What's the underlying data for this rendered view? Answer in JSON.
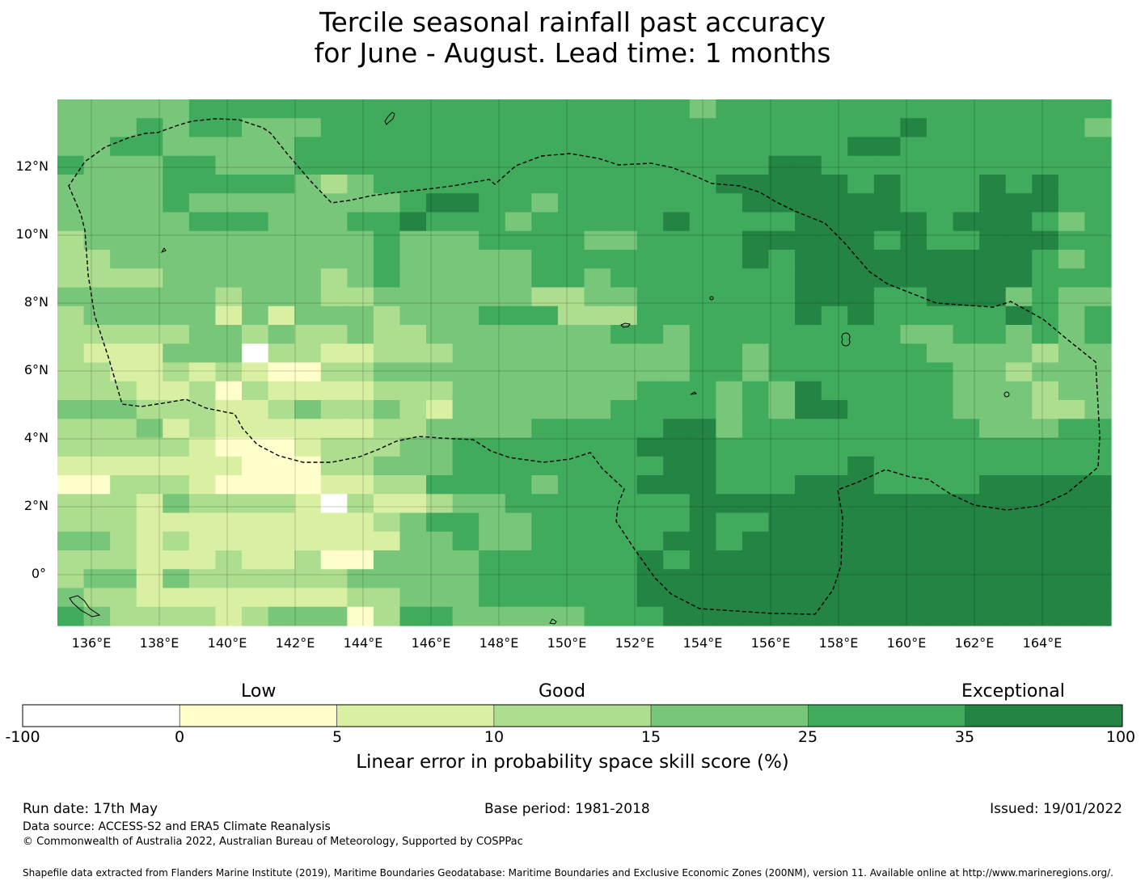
{
  "title": {
    "line1": "Tercile seasonal rainfall past accuracy",
    "line2": "for June - August. Lead time: 1 months"
  },
  "colors": {
    "c0": "#ffffff",
    "c1": "#ffffcc",
    "c2": "#d9f0a3",
    "c3": "#addd8e",
    "c4": "#78c679",
    "c5": "#41ab5d",
    "c6": "#238443",
    "boundary": "#000000"
  },
  "map": {
    "lat_ticks": [
      "12°N",
      "10°N",
      "8°N",
      "6°N",
      "4°N",
      "2°N",
      "0°"
    ],
    "lon_ticks": [
      "136°E",
      "138°E",
      "140°E",
      "142°E",
      "144°E",
      "146°E",
      "148°E",
      "150°E",
      "152°E",
      "154°E",
      "156°E",
      "158°E",
      "160°E",
      "162°E",
      "164°E"
    ],
    "grid_legend": "cell digits are colour-class indices 0..6 into the colorbar",
    "grid": [
      "4444455555555555555555554555555555555555",
      "4445455444555555555555555555555565555554",
      "4455444445555555555555555555556655555555",
      "5455554445555555555555555556655555555555",
      "4444555554345555555555555666665655565655",
      "4444544444444566554555555566666655566655",
      "4444455544455655545555565555666665666545",
      "3444444444445444555544555566666565566655",
      "3344444444445444445555555565666666666545",
      "3333444444345444445545555555666666666555",
      "4444443444334444443344555555666556664544",
      "3444442424443444555333555555656555556545",
      "3333344343343344444445545555555544554545",
      "3222444333223334444444445545555554444344",
      "3322323233334444444444445545555555443444",
      "3332231332223334444444555454655555444344",
      "4443332234334324444445555454665555444334",
      "3334232222223344445555566455555555544455",
      "3333321112333445555555666555555555555555",
      "2222222111334445555555566555556555555555",
      "1133321111223355554555666555666555566666",
      "3332433332232234455555556666666666666666",
      "3332222222223455445555556556666666666666",
      "4432322222224445445555566566666666666666",
      "3332223223334444555555656666666666666666",
      "3442433333344444555555666666666666666666",
      "4332222222233444555555666666666666666666",
      "5433332344443554444455566666666666666666"
    ],
    "patches": [
      {
        "r": 3,
        "c": 2,
        "v": 4
      },
      {
        "r": 3,
        "c": 3,
        "v": 4
      },
      {
        "r": 13,
        "c": 7,
        "v": 0
      },
      {
        "r": 14,
        "c": 8,
        "v": 1
      },
      {
        "r": 14,
        "c": 9,
        "v": 1
      },
      {
        "r": 15,
        "c": 8,
        "v": 2
      },
      {
        "r": 15,
        "c": 9,
        "v": 2
      },
      {
        "r": 21,
        "c": 10,
        "v": 0
      },
      {
        "r": 23,
        "c": 12,
        "v": 2
      },
      {
        "r": 24,
        "c": 10,
        "v": 1
      },
      {
        "r": 24,
        "c": 11,
        "v": 1
      },
      {
        "r": 27,
        "c": 11,
        "v": 1
      },
      {
        "r": 30,
        "c": 9,
        "v": 0
      },
      {
        "r": 30,
        "c": 10,
        "v": 0
      },
      {
        "r": 30,
        "c": 11,
        "v": 0
      },
      {
        "r": 34,
        "c": 14,
        "v": 6
      },
      {
        "r": 29,
        "c": 17,
        "v": 6
      },
      {
        "r": 33,
        "c": 15,
        "v": 3
      },
      {
        "r": 36,
        "c": 15,
        "v": 1
      },
      {
        "r": 37,
        "c": 15,
        "v": 1
      },
      {
        "r": 20,
        "c": 23,
        "v": 6
      },
      {
        "r": 31,
        "c": 25,
        "v": 6
      }
    ]
  },
  "colorbar": {
    "categories": [
      "Low",
      "Good",
      "Exceptional"
    ],
    "ticks": [
      "-100",
      "0",
      "5",
      "10",
      "15",
      "25",
      "35",
      "100"
    ],
    "label": "Linear error in probability space skill score (%)"
  },
  "footer": {
    "run_date": "Run date: 17th May",
    "base_period": "Base period: 1981-2018",
    "issued": "Issued: 19/01/2022",
    "data_source": "Data source: ACCESS-S2 and ERA5 Climate Reanalysis",
    "copyright": "© Commonwealth of Australia 2022, Australian Bureau of Meteorology, Supported by COSPPac",
    "shapefile": "Shapefile data extracted from Flanders Marine Institute (2019), Maritime Boundaries Geodatabase: Maritime Boundaries and Exclusive Economic Zones (200NM), version 11. Available online at http://www.marineregions.org/."
  }
}
